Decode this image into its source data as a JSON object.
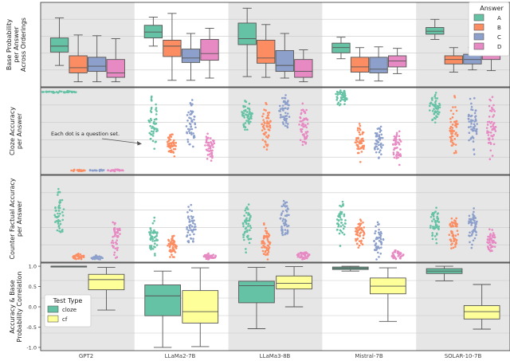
{
  "chart_data": {
    "type": "box-swarm-panels",
    "models": [
      "GPT2",
      "LLaMa2-7B",
      "LLaMa3-8B",
      "Mistral-7B",
      "SOLAR-10-7B"
    ],
    "answers": [
      "A",
      "B",
      "C",
      "D"
    ],
    "colors": {
      "A": "#66c2a5",
      "B": "#fc8d62",
      "C": "#8da0cb",
      "D": "#e78ac3",
      "cloze": "#66c2a5",
      "cf": "#ffff99"
    },
    "panels": [
      {
        "id": "base",
        "kind": "box",
        "ylabel": [
          "Base Probability",
          "per Answer",
          "Across Orderings"
        ],
        "ylim": [
          0,
          1
        ],
        "groups": [
          {
            "model": "GPT2",
            "boxes": [
              {
                "q1": 0.4,
                "med": 0.48,
                "q3": 0.59,
                "wlo": 0.22,
                "whi": 0.86
              },
              {
                "q1": 0.12,
                "med": 0.19,
                "q3": 0.35,
                "wlo": 0.0,
                "whi": 0.63
              },
              {
                "q1": 0.14,
                "med": 0.21,
                "q3": 0.33,
                "wlo": 0.0,
                "whi": 0.62
              },
              {
                "q1": 0.06,
                "med": 0.12,
                "q3": 0.3,
                "wlo": 0.0,
                "whi": 0.58
              }
            ]
          },
          {
            "model": "LLaMa2-7B",
            "boxes": [
              {
                "q1": 0.59,
                "med": 0.67,
                "q3": 0.76,
                "wlo": 0.48,
                "whi": 0.87
              },
              {
                "q1": 0.34,
                "med": 0.48,
                "q3": 0.56,
                "wlo": 0.02,
                "whi": 0.92
              },
              {
                "q1": 0.26,
                "med": 0.32,
                "q3": 0.44,
                "wlo": 0.02,
                "whi": 0.65
              },
              {
                "q1": 0.29,
                "med": 0.38,
                "q3": 0.57,
                "wlo": 0.05,
                "whi": 0.72
              }
            ]
          },
          {
            "model": "LLaMa3-8B",
            "boxes": [
              {
                "q1": 0.5,
                "med": 0.58,
                "q3": 0.79,
                "wlo": 0.07,
                "whi": 0.99
              },
              {
                "q1": 0.25,
                "med": 0.32,
                "q3": 0.56,
                "wlo": 0.06,
                "whi": 0.77
              },
              {
                "q1": 0.14,
                "med": 0.22,
                "q3": 0.42,
                "wlo": 0.05,
                "whi": 0.65
              },
              {
                "q1": 0.06,
                "med": 0.14,
                "q3": 0.3,
                "wlo": 0.0,
                "whi": 0.43
              }
            ]
          },
          {
            "model": "Mistral-7B",
            "boxes": [
              {
                "q1": 0.39,
                "med": 0.46,
                "q3": 0.52,
                "wlo": 0.31,
                "whi": 0.6
              },
              {
                "q1": 0.13,
                "med": 0.2,
                "q3": 0.33,
                "wlo": 0.02,
                "whi": 0.46
              },
              {
                "q1": 0.12,
                "med": 0.17,
                "q3": 0.33,
                "wlo": 0.01,
                "whi": 0.47
              },
              {
                "q1": 0.2,
                "med": 0.28,
                "q3": 0.35,
                "wlo": 0.11,
                "whi": 0.45
              }
            ]
          },
          {
            "model": "SOLAR-10-7B",
            "boxes": [
              {
                "q1": 0.64,
                "med": 0.68,
                "q3": 0.73,
                "wlo": 0.57,
                "whi": 0.84
              },
              {
                "q1": 0.24,
                "med": 0.3,
                "q3": 0.35,
                "wlo": 0.13,
                "whi": 0.46
              },
              {
                "q1": 0.24,
                "med": 0.3,
                "q3": 0.37,
                "wlo": 0.16,
                "whi": 0.46
              },
              {
                "q1": 0.3,
                "med": 0.35,
                "q3": 0.53,
                "wlo": 0.15,
                "whi": 0.8
              }
            ]
          }
        ]
      },
      {
        "id": "cloze",
        "kind": "swarm",
        "ylabel": [
          "Cloze Accuracy",
          "per Answer"
        ],
        "ylim": [
          0,
          1
        ],
        "annotation": "Each dot is a question set.",
        "groups": [
          {
            "model": "GPT2",
            "centers": [
              0.98,
              0.02,
              0.02,
              0.02
            ],
            "spreads": [
              0.01,
              0.01,
              0.01,
              0.01
            ],
            "widths": [
              22,
              10,
              10,
              10
            ],
            "n": [
              40,
              20,
              20,
              20
            ]
          },
          {
            "model": "LLaMa2-7B",
            "centers": [
              0.58,
              0.34,
              0.55,
              0.32
            ],
            "spreads": [
              0.25,
              0.13,
              0.22,
              0.14
            ],
            "widths": [
              6,
              6,
              6,
              6
            ],
            "n": [
              50,
              50,
              50,
              50
            ]
          },
          {
            "model": "LLaMa3-8B",
            "centers": [
              0.68,
              0.57,
              0.74,
              0.57
            ],
            "spreads": [
              0.16,
              0.22,
              0.17,
              0.23
            ],
            "widths": [
              7,
              6,
              7,
              6
            ],
            "n": [
              55,
              55,
              55,
              55
            ]
          },
          {
            "model": "Mistral-7B",
            "centers": [
              0.92,
              0.38,
              0.36,
              0.3
            ],
            "spreads": [
              0.09,
              0.18,
              0.17,
              0.16
            ],
            "widths": [
              8,
              6,
              6,
              6
            ],
            "n": [
              50,
              50,
              50,
              50
            ]
          },
          {
            "model": "SOLAR-10-7B",
            "centers": [
              0.78,
              0.54,
              0.58,
              0.55
            ],
            "spreads": [
              0.13,
              0.28,
              0.26,
              0.26
            ],
            "widths": [
              7,
              6,
              6,
              6
            ],
            "n": [
              55,
              55,
              55,
              55
            ]
          }
        ]
      },
      {
        "id": "cf",
        "kind": "swarm",
        "ylabel": [
          "Counter Factual Accuracy",
          "per Answer"
        ],
        "ylim": [
          0,
          1
        ],
        "groups": [
          {
            "model": "GPT2",
            "centers": [
              0.55,
              0.04,
              0.02,
              0.28
            ],
            "spreads": [
              0.25,
              0.03,
              0.02,
              0.18
            ],
            "widths": [
              6,
              8,
              8,
              6
            ],
            "n": [
              50,
              35,
              35,
              45
            ]
          },
          {
            "model": "LLaMa2-7B",
            "centers": [
              0.26,
              0.18,
              0.4,
              0.04
            ],
            "spreads": [
              0.15,
              0.12,
              0.22,
              0.03
            ],
            "widths": [
              6,
              6,
              6,
              8
            ],
            "n": [
              50,
              50,
              50,
              40
            ]
          },
          {
            "model": "LLaMa3-8B",
            "centers": [
              0.4,
              0.22,
              0.49,
              0.05
            ],
            "spreads": [
              0.24,
              0.15,
              0.2,
              0.04
            ],
            "widths": [
              6,
              6,
              6,
              8
            ],
            "n": [
              55,
              55,
              55,
              40
            ]
          },
          {
            "model": "Mistral-7B",
            "centers": [
              0.46,
              0.32,
              0.23,
              0.06
            ],
            "spreads": [
              0.2,
              0.17,
              0.18,
              0.05
            ],
            "widths": [
              6,
              6,
              6,
              8
            ],
            "n": [
              50,
              50,
              50,
              40
            ]
          },
          {
            "model": "SOLAR-10-7B",
            "centers": [
              0.42,
              0.34,
              0.4,
              0.22
            ],
            "spreads": [
              0.18,
              0.17,
              0.18,
              0.11
            ],
            "widths": [
              6,
              6,
              6,
              6
            ],
            "n": [
              55,
              55,
              55,
              50
            ]
          }
        ]
      },
      {
        "id": "corr",
        "kind": "box",
        "ylabel": [
          "Accuracy & Base",
          "Probability Correlation"
        ],
        "ylim": [
          -1.08,
          1.08
        ],
        "yticks": [
          -1.0,
          -0.5,
          0.0,
          0.5,
          1.0
        ],
        "yticklabels": [
          "-1.0",
          "-0.5",
          "0.0",
          "0.5",
          "1.0"
        ],
        "groups": [
          {
            "model": "GPT2",
            "boxes": [
              {
                "q1": 0.99,
                "med": 1.0,
                "q3": 1.0,
                "wlo": 0.98,
                "whi": 1.0
              },
              {
                "q1": 0.42,
                "med": 0.67,
                "q3": 0.8,
                "wlo": -0.08,
                "whi": 0.97
              }
            ]
          },
          {
            "model": "LLaMa2-7B",
            "boxes": [
              {
                "q1": -0.22,
                "med": 0.27,
                "q3": 0.54,
                "wlo": -1.0,
                "whi": 0.88
              },
              {
                "q1": -0.4,
                "med": -0.12,
                "q3": 0.4,
                "wlo": -0.98,
                "whi": 0.96
              }
            ]
          },
          {
            "model": "LLaMa3-8B",
            "boxes": [
              {
                "q1": 0.1,
                "med": 0.52,
                "q3": 0.63,
                "wlo": -0.54,
                "whi": 0.97
              },
              {
                "q1": 0.44,
                "med": 0.58,
                "q3": 0.76,
                "wlo": 0.0,
                "whi": 0.99
              }
            ]
          },
          {
            "model": "Mistral-7B",
            "boxes": [
              {
                "q1": 0.92,
                "med": 0.95,
                "q3": 0.98,
                "wlo": 0.88,
                "whi": 1.0
              },
              {
                "q1": 0.32,
                "med": 0.51,
                "q3": 0.71,
                "wlo": -0.36,
                "whi": 0.96
              }
            ]
          },
          {
            "model": "SOLAR-10-7B",
            "boxes": [
              {
                "q1": 0.82,
                "med": 0.88,
                "q3": 0.94,
                "wlo": 0.64,
                "whi": 1.0
              },
              {
                "q1": -0.3,
                "med": -0.12,
                "q3": 0.03,
                "wlo": -0.55,
                "whi": 0.55
              }
            ]
          }
        ]
      }
    ],
    "legend_answer": {
      "title": "Answer",
      "items": [
        "A",
        "B",
        "C",
        "D"
      ],
      "placement": "top-right"
    },
    "legend_test": {
      "title": "Test Type",
      "items": [
        "cloze",
        "cf"
      ],
      "placement": "middle-left"
    }
  }
}
